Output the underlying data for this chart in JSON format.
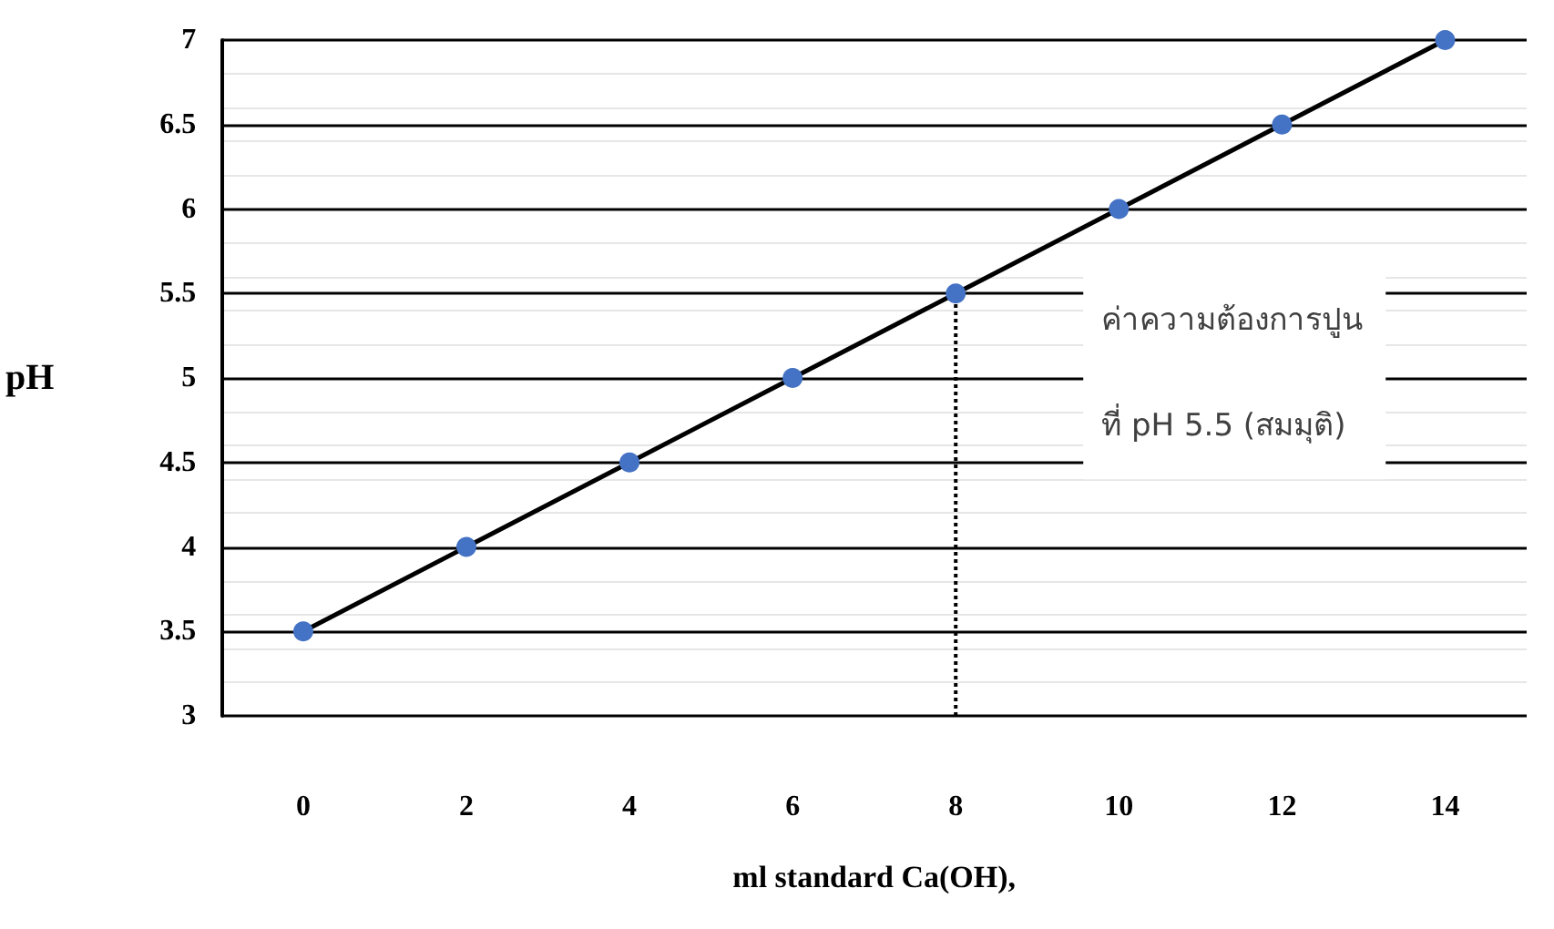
{
  "chart_data": {
    "type": "line",
    "xlabel": "ml standard Ca(OH),",
    "ylabel": "pH",
    "x": [
      0,
      2,
      4,
      6,
      8,
      10,
      12,
      14
    ],
    "series": [
      {
        "color": "#000000",
        "values": [
          3.5,
          4,
          4.5,
          5,
          5.5,
          6,
          6.5,
          7
        ]
      }
    ],
    "marker": "circle",
    "line_style": "solid",
    "xlim": [
      -1,
      15
    ],
    "xticks": [
      0,
      2,
      4,
      6,
      8,
      10,
      12,
      14
    ],
    "ylim": [
      3,
      7
    ],
    "yticks": [
      3,
      3.5,
      4,
      4.5,
      5,
      5.5,
      6,
      6.5,
      7
    ],
    "grid": "y",
    "ref_lines": [
      {
        "axis": "x",
        "value": 8,
        "label": "ค่าความต้องการปูน\nที่ pH 5.5 (สมมุติ)",
        "line_style": "dotted",
        "color": "#000000"
      }
    ]
  }
}
